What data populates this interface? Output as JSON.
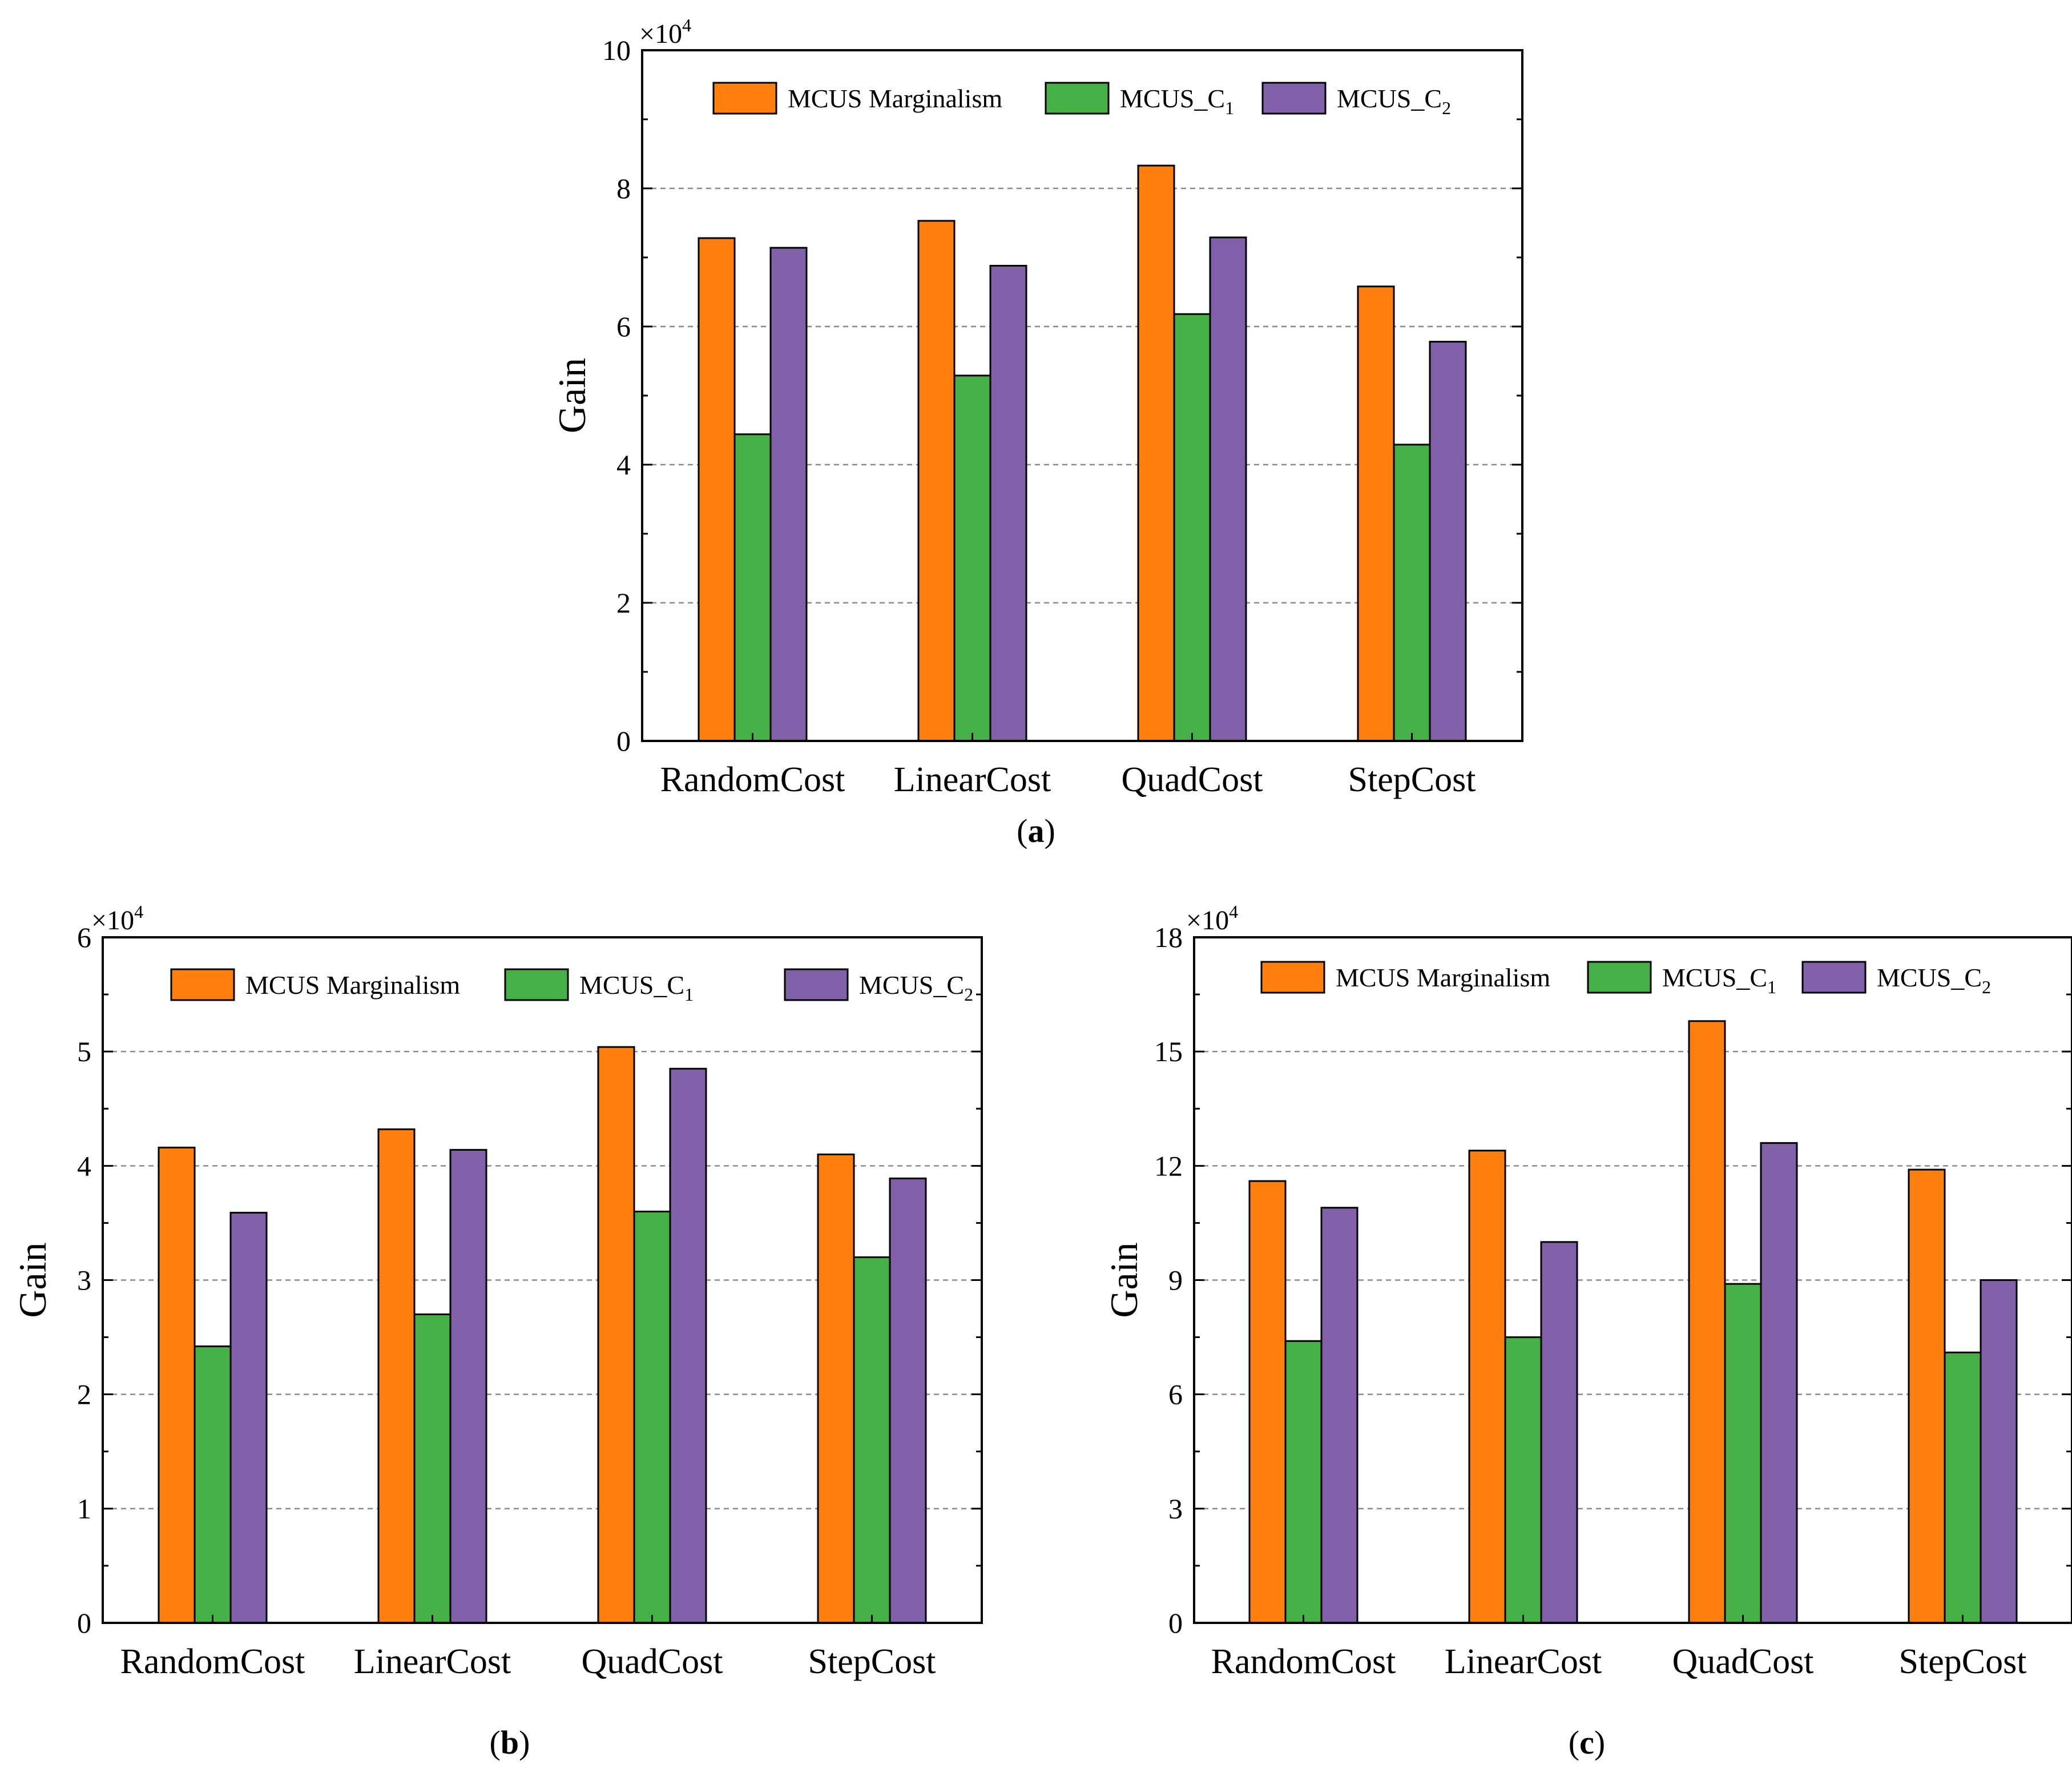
{
  "axis_title": "Gain",
  "scale_prefix": "×10",
  "scale_exponent": "4",
  "legend": [
    {
      "label": "MCUS Marginalism",
      "sub": "",
      "color": "#FF7F0E"
    },
    {
      "label": "MCUS_C",
      "sub": "1",
      "color": "#45B045"
    },
    {
      "label": "MCUS_C",
      "sub": "2",
      "color": "#8060A8"
    }
  ],
  "chart_data": [
    {
      "type": "bar",
      "panel": "a",
      "caption": "a",
      "categories": [
        "RandomCost",
        "LinearCost",
        "QuadCost",
        "StepCost"
      ],
      "ylabel": "Gain",
      "ylim": [
        0,
        10
      ],
      "yticks": [
        "0",
        "2",
        "4",
        "6",
        "8",
        "10"
      ],
      "y_multiplier": "×10^4",
      "gridlines": [
        2,
        4,
        6,
        8
      ],
      "series": [
        {
          "name": "MCUS Marginalism",
          "values": [
            7.28,
            7.53,
            8.33,
            6.58
          ]
        },
        {
          "name": "MCUS_C1",
          "values": [
            4.44,
            5.29,
            6.18,
            4.29
          ]
        },
        {
          "name": "MCUS_C2",
          "values": [
            7.14,
            6.88,
            7.29,
            5.78
          ]
        }
      ]
    },
    {
      "type": "bar",
      "panel": "b",
      "caption": "b",
      "categories": [
        "RandomCost",
        "LinearCost",
        "QuadCost",
        "StepCost"
      ],
      "ylabel": "Gain",
      "ylim": [
        0,
        6
      ],
      "yticks": [
        "0",
        "1",
        "2",
        "3",
        "4",
        "5",
        "6"
      ],
      "y_multiplier": "×10^4",
      "gridlines": [
        1,
        2,
        3,
        4,
        5
      ],
      "series": [
        {
          "name": "MCUS Marginalism",
          "values": [
            4.16,
            4.32,
            5.04,
            4.1
          ]
        },
        {
          "name": "MCUS_C1",
          "values": [
            2.42,
            2.7,
            3.6,
            3.2
          ]
        },
        {
          "name": "MCUS_C2",
          "values": [
            3.59,
            4.14,
            4.85,
            3.89
          ]
        }
      ]
    },
    {
      "type": "bar",
      "panel": "c",
      "caption": "c",
      "categories": [
        "RandomCost",
        "LinearCost",
        "QuadCost",
        "StepCost"
      ],
      "ylabel": "Gain",
      "ylim": [
        0,
        18
      ],
      "yticks": [
        "0",
        "3",
        "6",
        "9",
        "12",
        "15",
        "18"
      ],
      "y_multiplier": "×10^4",
      "gridlines": [
        3,
        6,
        9,
        12,
        15
      ],
      "series": [
        {
          "name": "MCUS Marginalism",
          "values": [
            11.6,
            12.4,
            15.8,
            11.9
          ]
        },
        {
          "name": "MCUS_C1",
          "values": [
            7.4,
            7.5,
            8.9,
            7.1
          ]
        },
        {
          "name": "MCUS_C2",
          "values": [
            10.9,
            10.0,
            12.6,
            9.0
          ]
        }
      ]
    }
  ]
}
